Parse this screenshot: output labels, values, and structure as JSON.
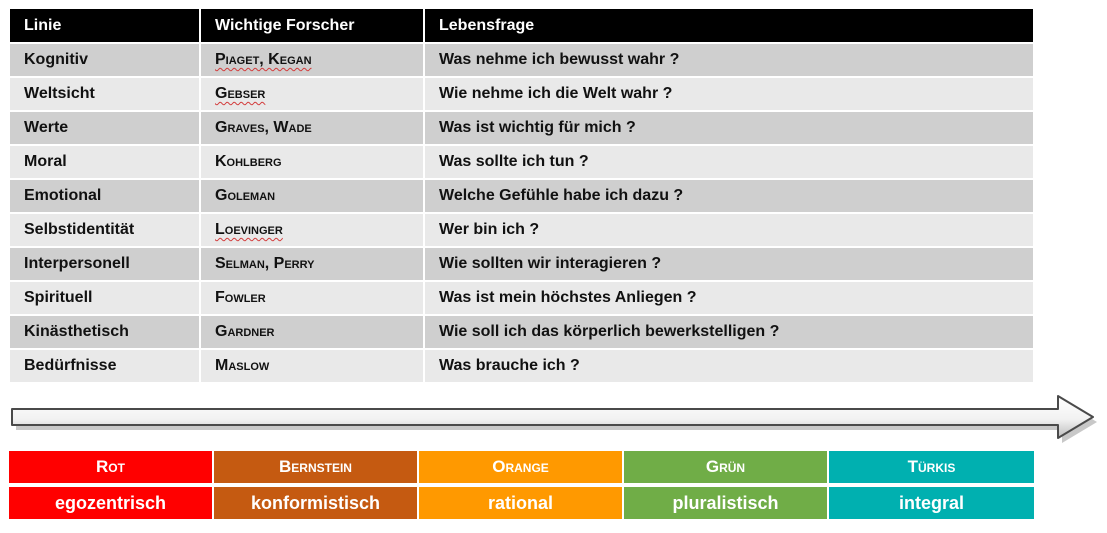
{
  "table": {
    "headers": [
      "Linie",
      "Wichtige Forscher",
      "Lebensfrage"
    ],
    "rows": [
      {
        "linie": "Kognitiv",
        "forscher": "Piaget, Kegan",
        "frage": "Was nehme ich bewusst wahr ?"
      },
      {
        "linie": "Weltsicht",
        "forscher": "Gebser",
        "frage": "Wie nehme ich die Welt wahr ?"
      },
      {
        "linie": "Werte",
        "forscher": "Graves, Wade",
        "frage": "Was ist wichtig für mich ?"
      },
      {
        "linie": "Moral",
        "forscher": "Kohlberg",
        "frage": "Was sollte ich tun ?"
      },
      {
        "linie": "Emotional",
        "forscher": "Goleman",
        "frage": "Welche Gefühle habe ich dazu ?"
      },
      {
        "linie": "Selbstidentität",
        "forscher": "Loevinger",
        "frage": "Wer bin ich ?"
      },
      {
        "linie": "Interpersonell",
        "forscher": "Selman, Perry",
        "frage": "Wie sollten wir interagieren ?"
      },
      {
        "linie": "Spirituell",
        "forscher": "Fowler",
        "frage": "Was ist mein höchstes Anliegen ?"
      },
      {
        "linie": "Kinästhetisch",
        "forscher": "Gardner",
        "frage": "Wie soll ich das körperlich bewerkstelligen ?"
      },
      {
        "linie": "Bedürfnisse",
        "forscher": "Maslow",
        "frage": "Was brauche ich ?"
      }
    ]
  },
  "levels": [
    {
      "name": "Rot",
      "description": "egozentrisch",
      "color": "#ff0000"
    },
    {
      "name": "Bernstein",
      "description": "konformistisch",
      "color": "#c55a11"
    },
    {
      "name": "Orange",
      "description": "rational",
      "color": "#ff9900"
    },
    {
      "name": "Grün",
      "description": "pluralistisch",
      "color": "#70ad47"
    },
    {
      "name": "Türkis",
      "description": "integral",
      "color": "#00b0b0"
    }
  ],
  "colors": {
    "header_bg": "#000000",
    "row_dark": "#cfcfcf",
    "row_light": "#e9e9e9"
  }
}
